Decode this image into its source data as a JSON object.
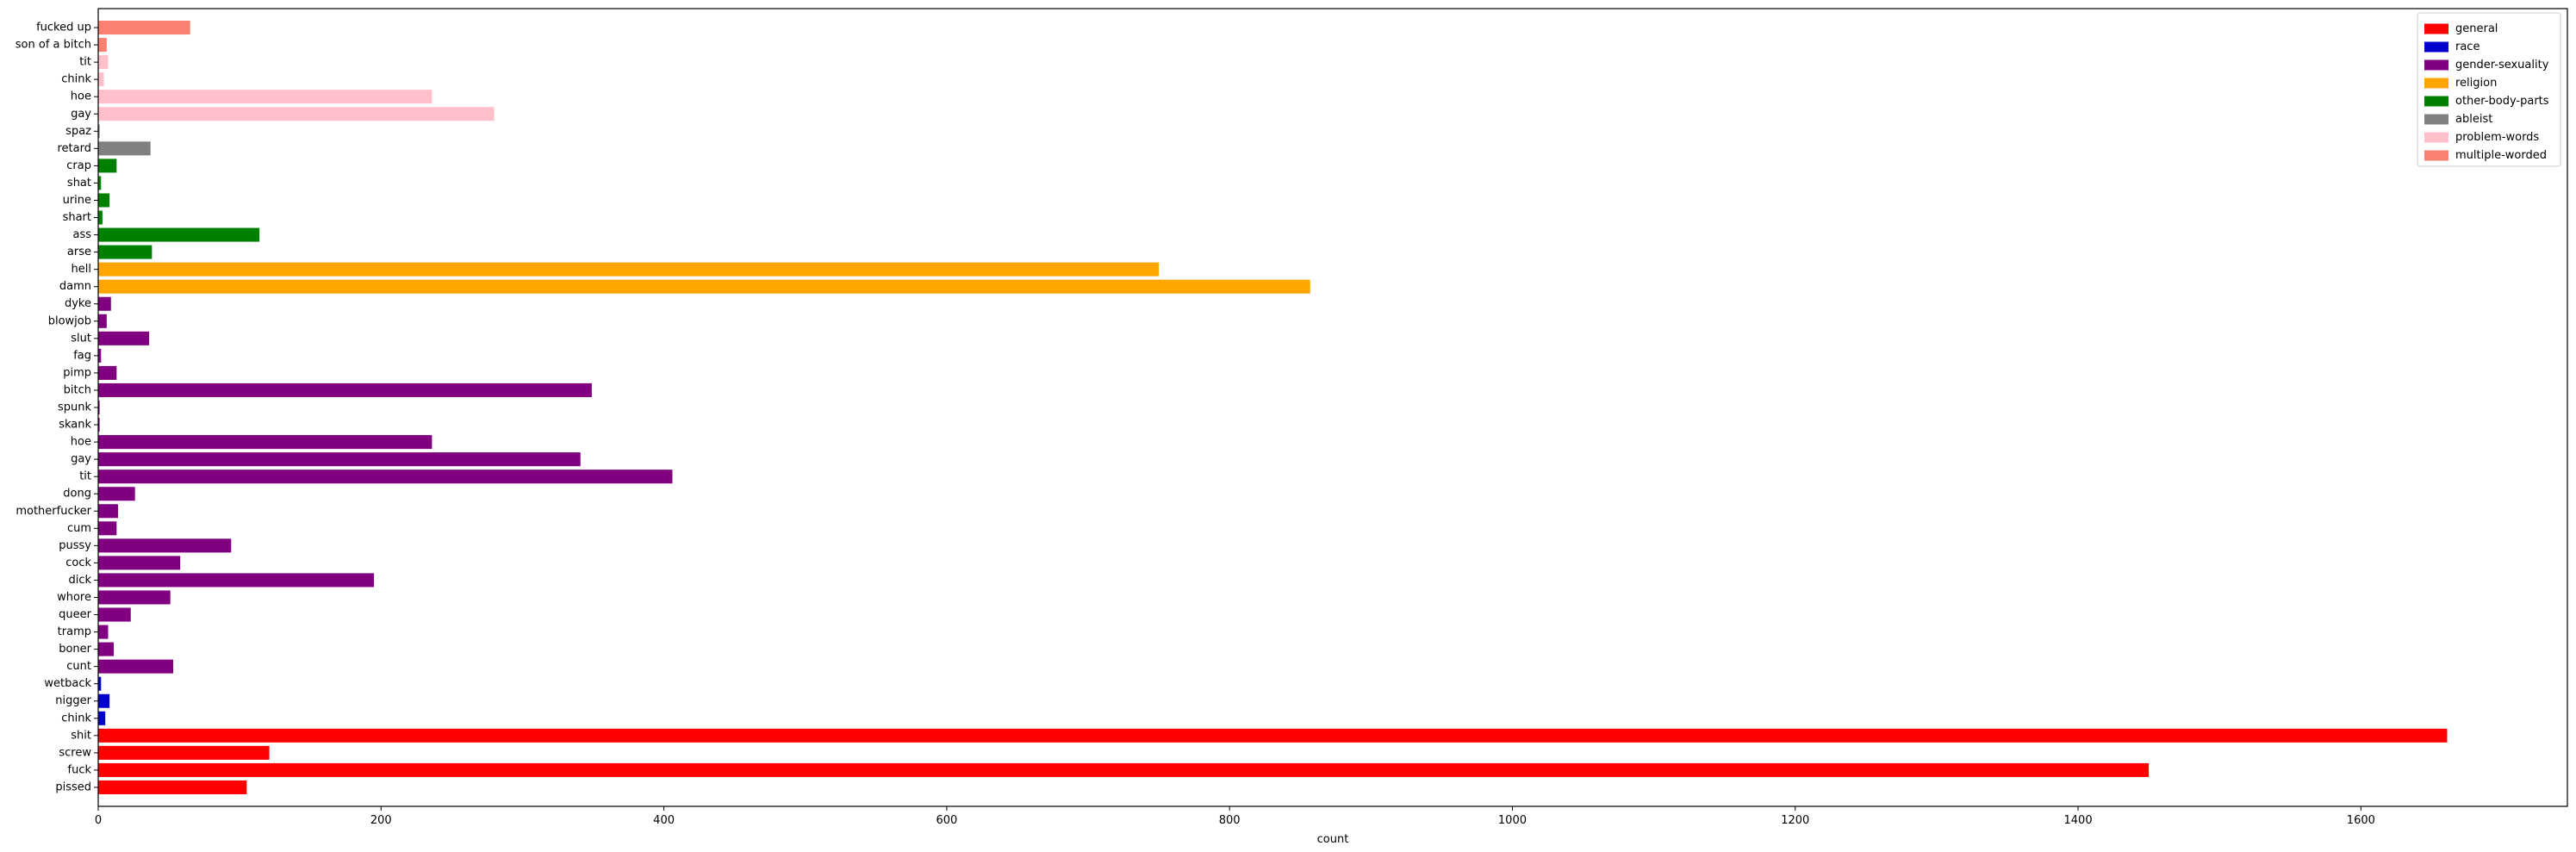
{
  "chart_data": {
    "type": "bar",
    "orientation": "horizontal",
    "xlabel": "count",
    "ylabel": "",
    "xlim": [
      0,
      1746
    ],
    "xticks": [
      0,
      200,
      400,
      600,
      800,
      1000,
      1200,
      1400,
      1600
    ],
    "grid": false,
    "legend_position": "top-right",
    "legend": [
      {
        "name": "general",
        "color": "#ff0000"
      },
      {
        "name": "race",
        "color": "#0000cd"
      },
      {
        "name": "gender-sexuality",
        "color": "#800080"
      },
      {
        "name": "religion",
        "color": "#ffa500"
      },
      {
        "name": "other-body-parts",
        "color": "#008000"
      },
      {
        "name": "ableist",
        "color": "#808080"
      },
      {
        "name": "problem-words",
        "color": "#ffc0cb"
      },
      {
        "name": "multiple-worded",
        "color": "#fa8072"
      }
    ],
    "bars": [
      {
        "label": "pissed",
        "value": 105,
        "category": "general"
      },
      {
        "label": "fuck",
        "value": 1450,
        "category": "general"
      },
      {
        "label": "screw",
        "value": 121,
        "category": "general"
      },
      {
        "label": "shit",
        "value": 1661,
        "category": "general"
      },
      {
        "label": "chink",
        "value": 5,
        "category": "race"
      },
      {
        "label": "nigger",
        "value": 8,
        "category": "race"
      },
      {
        "label": "wetback",
        "value": 2,
        "category": "race"
      },
      {
        "label": "cunt",
        "value": 53,
        "category": "gender-sexuality"
      },
      {
        "label": "boner",
        "value": 11,
        "category": "gender-sexuality"
      },
      {
        "label": "tramp",
        "value": 7,
        "category": "gender-sexuality"
      },
      {
        "label": "queer",
        "value": 23,
        "category": "gender-sexuality"
      },
      {
        "label": "whore",
        "value": 51,
        "category": "gender-sexuality"
      },
      {
        "label": "dick",
        "value": 195,
        "category": "gender-sexuality"
      },
      {
        "label": "cock",
        "value": 58,
        "category": "gender-sexuality"
      },
      {
        "label": "pussy",
        "value": 94,
        "category": "gender-sexuality"
      },
      {
        "label": "cum",
        "value": 13,
        "category": "gender-sexuality"
      },
      {
        "label": "motherfucker",
        "value": 14,
        "category": "gender-sexuality"
      },
      {
        "label": "dong",
        "value": 26,
        "category": "gender-sexuality"
      },
      {
        "label": "tit",
        "value": 406,
        "category": "gender-sexuality"
      },
      {
        "label": "gay",
        "value": 341,
        "category": "gender-sexuality"
      },
      {
        "label": "hoe",
        "value": 236,
        "category": "gender-sexuality"
      },
      {
        "label": "skank",
        "value": 1,
        "category": "gender-sexuality"
      },
      {
        "label": "spunk",
        "value": 1,
        "category": "gender-sexuality"
      },
      {
        "label": "bitch",
        "value": 349,
        "category": "gender-sexuality"
      },
      {
        "label": "pimp",
        "value": 13,
        "category": "gender-sexuality"
      },
      {
        "label": "fag",
        "value": 2,
        "category": "gender-sexuality"
      },
      {
        "label": "slut",
        "value": 36,
        "category": "gender-sexuality"
      },
      {
        "label": "blowjob",
        "value": 6,
        "category": "gender-sexuality"
      },
      {
        "label": "dyke",
        "value": 9,
        "category": "gender-sexuality"
      },
      {
        "label": "damn",
        "value": 857,
        "category": "religion"
      },
      {
        "label": "hell",
        "value": 750,
        "category": "religion"
      },
      {
        "label": "arse",
        "value": 38,
        "category": "other-body-parts"
      },
      {
        "label": "ass",
        "value": 114,
        "category": "other-body-parts"
      },
      {
        "label": "shart",
        "value": 3,
        "category": "other-body-parts"
      },
      {
        "label": "urine",
        "value": 8,
        "category": "other-body-parts"
      },
      {
        "label": "shat",
        "value": 2,
        "category": "other-body-parts"
      },
      {
        "label": "crap",
        "value": 13,
        "category": "other-body-parts"
      },
      {
        "label": "retard",
        "value": 37,
        "category": "ableist"
      },
      {
        "label": "spaz",
        "value": 1,
        "category": "ableist"
      },
      {
        "label": "gay",
        "value": 280,
        "category": "problem-words"
      },
      {
        "label": "hoe",
        "value": 236,
        "category": "problem-words"
      },
      {
        "label": "chink",
        "value": 4,
        "category": "problem-words"
      },
      {
        "label": "tit",
        "value": 7,
        "category": "problem-words"
      },
      {
        "label": "son of a bitch",
        "value": 6,
        "category": "multiple-worded"
      },
      {
        "label": "fucked up",
        "value": 65,
        "category": "multiple-worded"
      }
    ]
  }
}
